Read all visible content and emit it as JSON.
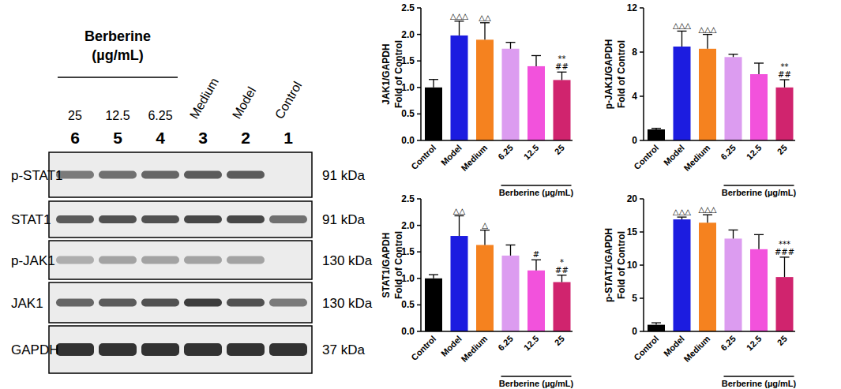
{
  "western_blot": {
    "group_label": [
      "Berberine",
      "(µg/mL)"
    ],
    "lanes": [
      {
        "label": "25",
        "number": "6"
      },
      {
        "label": "12.5",
        "number": "5"
      },
      {
        "label": "6.25",
        "number": "4"
      },
      {
        "label": "Medium",
        "number": "3"
      },
      {
        "label": "Model",
        "number": "2"
      },
      {
        "label": "Control",
        "number": "1"
      }
    ],
    "rows": [
      {
        "label": "p-STAT1",
        "size": "91 kDa",
        "bands": [
          0.55,
          0.6,
          0.65,
          0.7,
          0.7,
          0
        ]
      },
      {
        "label": "STAT1",
        "size": "91 kDa",
        "bands": [
          0.7,
          0.75,
          0.75,
          0.8,
          0.8,
          0.6
        ]
      },
      {
        "label": "p-JAK1",
        "size": "130 kDa",
        "bands": [
          0.3,
          0.35,
          0.35,
          0.35,
          0.35,
          0
        ]
      },
      {
        "label": "JAK1",
        "size": "130 kDa",
        "bands": [
          0.65,
          0.7,
          0.75,
          0.85,
          0.75,
          0.55
        ]
      },
      {
        "label": "GAPDH",
        "size": "37 kDa",
        "bands": [
          0.9,
          0.9,
          0.9,
          0.9,
          0.9,
          0.9
        ]
      }
    ]
  },
  "chart_data": [
    {
      "type": "bar",
      "y_label": [
        "JAK1/GAPDH",
        "Fold of Control"
      ],
      "categories": [
        "Control",
        "Model",
        "Medium",
        "6.25",
        "12.5",
        "25"
      ],
      "group_label": "Berberine (µg/mL)",
      "values": [
        1.0,
        1.98,
        1.9,
        1.73,
        1.4,
        1.14
      ],
      "errors": [
        0.15,
        0.27,
        0.32,
        0.12,
        0.2,
        0.15
      ],
      "colors": [
        "#000000",
        "#1c1ce0",
        "#f5821f",
        "#dc9cf0",
        "#f252dc",
        "#d0246e"
      ],
      "significance": [
        [],
        [
          "△△△"
        ],
        [
          "△△"
        ],
        [],
        [],
        [
          "**",
          "##"
        ]
      ],
      "ylim": [
        0,
        2.5
      ],
      "yticks": [
        {
          "value": 0,
          "label": "0.0"
        },
        {
          "value": 0.5,
          "label": "0.5"
        },
        {
          "value": 1,
          "label": "1.0"
        },
        {
          "value": 1.5,
          "label": "1.5"
        },
        {
          "value": 2,
          "label": "2.0"
        },
        {
          "value": 2.5,
          "label": "2.5"
        }
      ]
    },
    {
      "type": "bar",
      "y_label": [
        "p-JAK1/GAPDH",
        "Fold of Control"
      ],
      "categories": [
        "Control",
        "Model",
        "Medium",
        "6.25",
        "12.5",
        "25"
      ],
      "group_label": "Berberine (µg/mL)",
      "values": [
        1.0,
        8.5,
        8.3,
        7.55,
        6.0,
        4.8
      ],
      "errors": [
        0.1,
        1.4,
        1.3,
        0.25,
        1.0,
        0.7
      ],
      "colors": [
        "#000000",
        "#1c1ce0",
        "#f5821f",
        "#dc9cf0",
        "#f252dc",
        "#d0246e"
      ],
      "significance": [
        [],
        [
          "△△△"
        ],
        [
          "△△△"
        ],
        [],
        [],
        [
          "**",
          "##"
        ]
      ],
      "ylim": [
        0,
        12
      ],
      "yticks": [
        0,
        4,
        8,
        12
      ]
    },
    {
      "type": "bar",
      "y_label": [
        "STAT1/GAPDH",
        "Fold of Control"
      ],
      "categories": [
        "Control",
        "Model",
        "Medium",
        "6.25",
        "12.5",
        "25"
      ],
      "group_label": "Berberine (µg/mL)",
      "values": [
        1.0,
        1.8,
        1.63,
        1.43,
        1.15,
        0.93
      ],
      "errors": [
        0.07,
        0.38,
        0.28,
        0.2,
        0.2,
        0.13
      ],
      "colors": [
        "#000000",
        "#1c1ce0",
        "#f5821f",
        "#dc9cf0",
        "#f252dc",
        "#d0246e"
      ],
      "significance": [
        [],
        [
          "△△"
        ],
        [
          "△"
        ],
        [],
        [
          "#"
        ],
        [
          "*",
          "##"
        ]
      ],
      "ylim": [
        0,
        2.5
      ],
      "yticks": [
        {
          "value": 0,
          "label": "0.0"
        },
        {
          "value": 0.5,
          "label": "0.5"
        },
        {
          "value": 1,
          "label": "1.0"
        },
        {
          "value": 1.5,
          "label": "1.5"
        },
        {
          "value": 2,
          "label": "2.0"
        },
        {
          "value": 2.5,
          "label": "2.5"
        }
      ]
    },
    {
      "type": "bar",
      "y_label": [
        "p-STAT1/GAPDH",
        "Fold of Control"
      ],
      "categories": [
        "Control",
        "Model",
        "Medium",
        "6.25",
        "12.5",
        "25"
      ],
      "group_label": "Berberine (µg/mL)",
      "values": [
        1.0,
        16.9,
        16.4,
        14.0,
        12.4,
        8.2
      ],
      "errors": [
        0.3,
        0.35,
        1.2,
        1.3,
        2.2,
        3.0
      ],
      "colors": [
        "#000000",
        "#1c1ce0",
        "#f5821f",
        "#dc9cf0",
        "#f252dc",
        "#d0246e"
      ],
      "significance": [
        [],
        [
          "△△△"
        ],
        [
          "△△△"
        ],
        [],
        [],
        [
          "***",
          "###"
        ]
      ],
      "ylim": [
        0,
        20
      ],
      "yticks": [
        0,
        5,
        10,
        15,
        20
      ]
    }
  ]
}
